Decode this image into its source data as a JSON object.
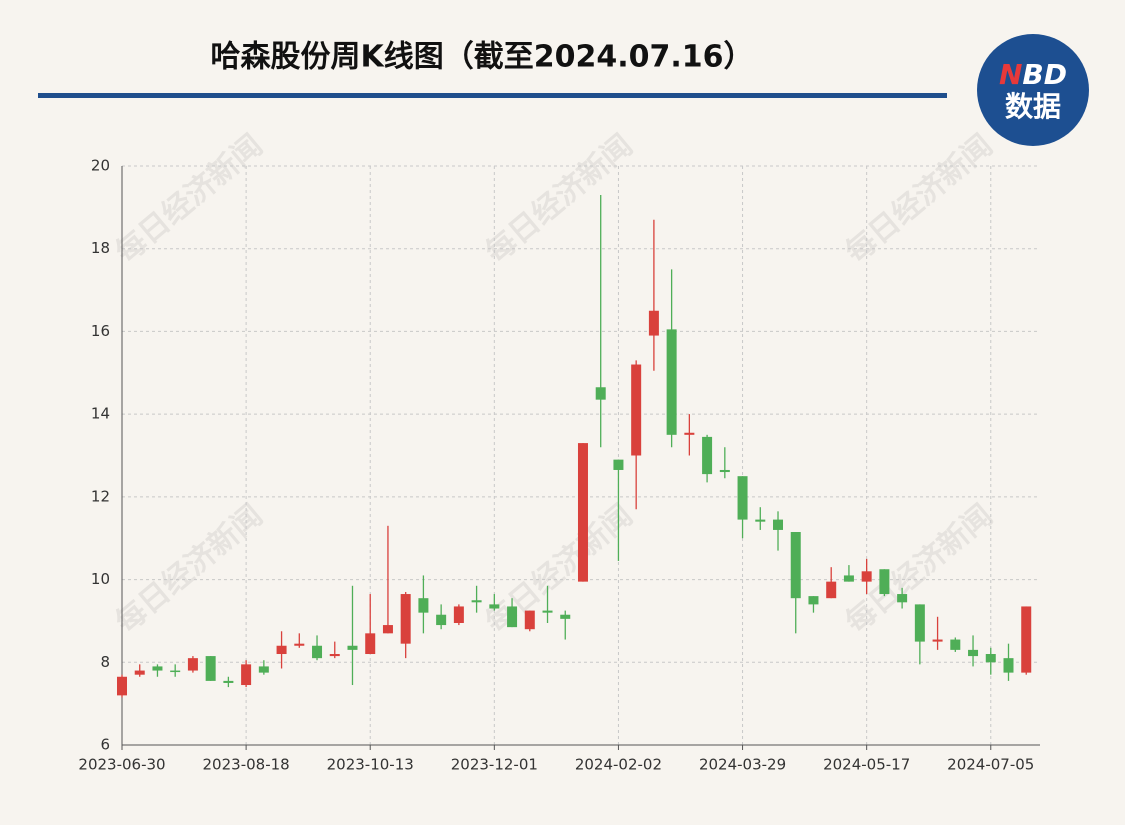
{
  "chart_data": {
    "type": "candlestick",
    "title": "哈森股份周K线图（截至2024.07.16）",
    "categories": [
      "2023-06-30",
      null,
      null,
      null,
      null,
      null,
      null,
      "2023-08-18",
      null,
      null,
      null,
      null,
      null,
      null,
      "2023-10-13",
      null,
      null,
      null,
      null,
      null,
      null,
      "2023-12-01",
      null,
      null,
      null,
      null,
      null,
      null,
      "2024-02-02",
      null,
      null,
      null,
      null,
      null,
      null,
      "2024-03-29",
      null,
      null,
      null,
      null,
      null,
      null,
      "2024-05-17",
      null,
      null,
      null,
      null,
      null,
      null,
      "2024-07-05",
      null,
      null
    ],
    "open": [
      7.2,
      7.7,
      7.9,
      7.8,
      7.8,
      8.15,
      7.55,
      7.45,
      7.9,
      8.2,
      8.4,
      8.4,
      8.15,
      8.4,
      8.2,
      8.7,
      8.45,
      9.55,
      9.15,
      8.95,
      9.5,
      9.4,
      9.35,
      8.8,
      9.25,
      9.15,
      9.95,
      14.65,
      12.9,
      13.0,
      15.9,
      16.05,
      13.5,
      13.45,
      12.65,
      12.5,
      11.45,
      11.45,
      11.15,
      9.6,
      9.55,
      10.1,
      9.95,
      10.25,
      9.65,
      9.4,
      8.5,
      8.55,
      8.3,
      8.2,
      8.1,
      7.75
    ],
    "high": [
      7.7,
      7.95,
      7.95,
      7.95,
      8.15,
      8.15,
      7.65,
      8.05,
      8.05,
      8.75,
      8.7,
      8.65,
      8.5,
      9.85,
      9.65,
      11.3,
      9.7,
      10.1,
      9.4,
      9.4,
      9.85,
      9.65,
      9.55,
      9.25,
      9.85,
      9.25,
      13.3,
      19.3,
      12.9,
      15.3,
      18.7,
      17.5,
      14.0,
      13.5,
      13.2,
      12.5,
      11.75,
      11.65,
      11.15,
      9.6,
      10.3,
      10.35,
      10.5,
      10.25,
      9.8,
      9.4,
      9.1,
      8.6,
      8.65,
      8.35,
      8.45,
      9.35
    ],
    "low": [
      7.15,
      7.65,
      7.65,
      7.65,
      7.75,
      7.55,
      7.4,
      7.4,
      7.7,
      7.85,
      8.35,
      8.05,
      8.1,
      7.45,
      8.2,
      8.7,
      8.1,
      8.7,
      8.8,
      8.9,
      9.2,
      9.25,
      8.85,
      8.75,
      8.95,
      8.55,
      9.95,
      13.2,
      10.45,
      11.7,
      15.05,
      13.2,
      13.0,
      12.35,
      12.45,
      11.0,
      11.2,
      10.7,
      8.7,
      9.2,
      9.55,
      9.95,
      9.65,
      9.6,
      9.3,
      7.95,
      8.3,
      8.25,
      7.9,
      7.7,
      7.55,
      7.7
    ],
    "close": [
      7.65,
      7.8,
      7.8,
      7.78,
      8.1,
      7.55,
      7.5,
      7.95,
      7.75,
      8.4,
      8.45,
      8.1,
      8.2,
      8.3,
      8.7,
      8.9,
      9.65,
      9.2,
      8.9,
      9.35,
      9.45,
      9.3,
      8.85,
      9.25,
      9.2,
      9.05,
      13.3,
      14.35,
      12.65,
      15.2,
      16.5,
      13.5,
      13.55,
      12.55,
      12.6,
      11.45,
      11.4,
      11.2,
      9.55,
      9.4,
      9.95,
      9.95,
      10.2,
      9.65,
      9.45,
      8.5,
      8.55,
      8.3,
      8.15,
      8.0,
      7.75,
      9.35
    ],
    "up_color": "#d9413c",
    "down_color": "#4fae57",
    "ylim": [
      6,
      20
    ],
    "yticks": [
      6,
      8,
      10,
      12,
      14,
      16,
      18,
      20
    ],
    "grid": true
  },
  "logo": {
    "n": "N",
    "bd": "BD",
    "sub": "数据"
  },
  "watermark": "每日经济新闻"
}
